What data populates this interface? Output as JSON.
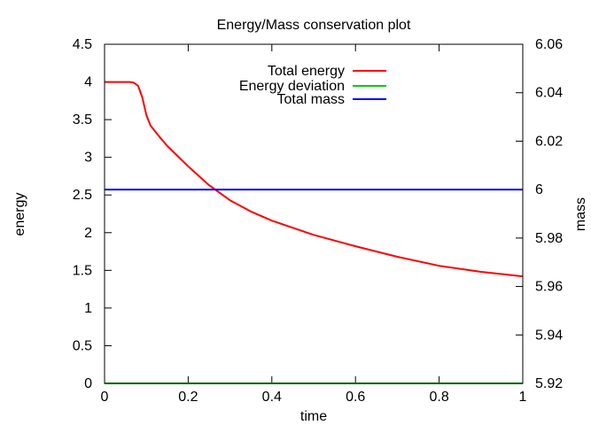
{
  "chart_data": {
    "type": "line",
    "title": "Energy/Mass conservation plot",
    "xlabel": "time",
    "ylabel": "energy",
    "y2label": "mass",
    "xlim": [
      0,
      1
    ],
    "ylim": [
      0,
      4.5
    ],
    "y2lim": [
      5.92,
      6.06
    ],
    "xticks": [
      "0",
      "0.2",
      "0.4",
      "0.6",
      "0.8",
      "1"
    ],
    "yticks": [
      "0",
      "0.5",
      "1",
      "1.5",
      "2",
      "2.5",
      "3",
      "3.5",
      "4",
      "4.5"
    ],
    "y2ticks": [
      "5.92",
      "5.94",
      "5.96",
      "5.98",
      "6",
      "6.02",
      "6.04",
      "6.06"
    ],
    "grid": false,
    "legend_position": "top-center",
    "series": [
      {
        "name": "Total energy",
        "color": "#ff0000",
        "axis": "left",
        "x": [
          0,
          0.02,
          0.04,
          0.06,
          0.07,
          0.08,
          0.09,
          0.1,
          0.11,
          0.13,
          0.15,
          0.2,
          0.25,
          0.3,
          0.35,
          0.4,
          0.5,
          0.6,
          0.7,
          0.8,
          0.9,
          1.0
        ],
        "y": [
          4.0,
          4.0,
          4.0,
          4.0,
          3.99,
          3.95,
          3.8,
          3.56,
          3.42,
          3.28,
          3.15,
          2.88,
          2.63,
          2.43,
          2.28,
          2.16,
          1.97,
          1.82,
          1.68,
          1.56,
          1.48,
          1.42
        ]
      },
      {
        "name": "Energy deviation",
        "color": "#00cc00",
        "axis": "left",
        "x": [
          0,
          1
        ],
        "y": [
          0,
          0
        ]
      },
      {
        "name": "Total mass",
        "color": "#0000ff",
        "axis": "right",
        "x": [
          0,
          1
        ],
        "y": [
          6.0,
          6.0
        ]
      }
    ]
  }
}
